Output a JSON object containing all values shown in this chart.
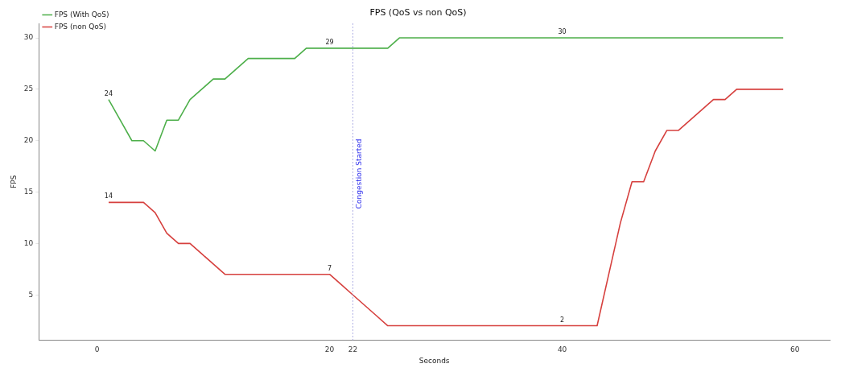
{
  "chart_data": {
    "type": "line",
    "title": "FPS (QoS vs non QoS)",
    "xlabel": "Seconds",
    "ylabel": "FPS",
    "x": [
      1,
      2,
      3,
      4,
      5,
      6,
      7,
      8,
      9,
      10,
      11,
      12,
      13,
      14,
      15,
      16,
      17,
      18,
      19,
      20,
      21,
      22,
      23,
      24,
      25,
      26,
      27,
      28,
      29,
      30,
      31,
      32,
      33,
      34,
      35,
      36,
      37,
      38,
      39,
      40,
      41,
      42,
      43,
      44,
      45,
      46,
      47,
      48,
      49,
      50,
      51,
      52,
      53,
      54,
      55,
      56,
      57,
      58,
      59
    ],
    "series": [
      {
        "name": "FPS (With QoS)",
        "color": "#4daf4a",
        "values": [
          24,
          22,
          20,
          20,
          19,
          22,
          22,
          24,
          25,
          26,
          26,
          27,
          28,
          28,
          28,
          28,
          28,
          29,
          29,
          29,
          29,
          29,
          29,
          29,
          29,
          30,
          30,
          30,
          30,
          30,
          30,
          30,
          30,
          30,
          30,
          30,
          30,
          30,
          30,
          30,
          30,
          30,
          30,
          30,
          30,
          30,
          30,
          30,
          30,
          30,
          30,
          30,
          30,
          30,
          30,
          30,
          30,
          30,
          30
        ]
      },
      {
        "name": "FPS (non QoS)",
        "color": "#d6403e",
        "values": [
          14,
          14,
          14,
          14,
          13,
          11,
          10,
          10,
          9,
          8,
          7,
          7,
          7,
          7,
          7,
          7,
          7,
          7,
          7,
          7,
          6,
          5,
          4,
          3,
          2,
          2,
          2,
          2,
          2,
          2,
          2,
          2,
          2,
          2,
          2,
          2,
          2,
          2,
          2,
          2,
          2,
          2,
          2,
          7,
          12,
          16,
          16,
          19,
          21,
          21,
          22,
          23,
          24,
          24,
          25,
          25,
          25,
          25,
          25
        ]
      }
    ],
    "xlim": [
      -5,
      63
    ],
    "xticks": [
      0,
      20,
      22,
      40,
      60
    ],
    "ylim": [
      0.6,
      31.4
    ],
    "yticks": [
      5,
      10,
      15,
      20,
      25,
      30
    ],
    "ref_lines": [
      {
        "axis": "x",
        "value": 22,
        "label": "Congestion Started",
        "color": "#9999dd",
        "line_style": "dotted"
      }
    ],
    "annotations": [
      {
        "text": "24",
        "x": 1,
        "y": 24
      },
      {
        "text": "29",
        "x": 20,
        "y": 29
      },
      {
        "text": "30",
        "x": 40,
        "y": 30
      },
      {
        "text": "14",
        "x": 1,
        "y": 14
      },
      {
        "text": "7",
        "x": 20,
        "y": 7
      },
      {
        "text": "2",
        "x": 40,
        "y": 2
      }
    ],
    "legend": "top left",
    "grid": false,
    "marker": "none",
    "line_style": "solid"
  }
}
